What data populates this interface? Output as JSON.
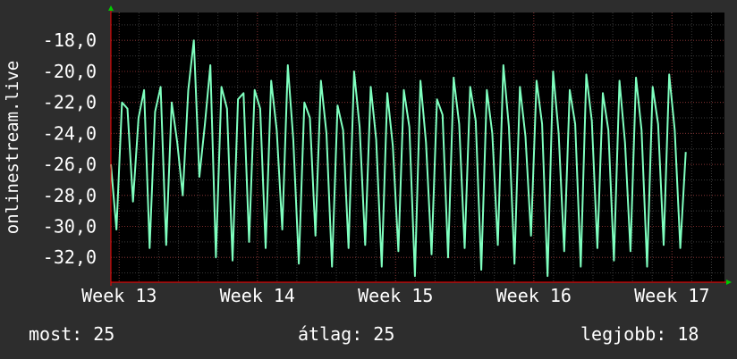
{
  "colors": {
    "background": "#2d2d2d",
    "plot_background": "#000000",
    "line": "#7fffbf",
    "grid_major": "#7a2a2a",
    "grid_minor": "#3a3a3a",
    "axis": "#ff0000",
    "arrow": "#00cc00",
    "text": "#ffffff"
  },
  "chart_data": {
    "type": "line",
    "title": "",
    "xlabel": "",
    "ylabel": "onlinestream.live",
    "ylim": [
      -33.6,
      -16.2
    ],
    "xlim": [
      12.94,
      17.38
    ],
    "ytick_labels": [
      "-18,0",
      "-20,0",
      "-22,0",
      "-24,0",
      "-26,0",
      "-28,0",
      "-30,0",
      "-32,0"
    ],
    "ytick_values": [
      -18,
      -20,
      -22,
      -24,
      -26,
      -28,
      -30,
      -32
    ],
    "xtick_labels": [
      "Week 13",
      "Week 14",
      "Week 15",
      "Week 16",
      "Week 17"
    ],
    "xtick_values": [
      13,
      14,
      15,
      16,
      17
    ],
    "grid": true,
    "series": [
      {
        "name": "",
        "x": [
          12.94,
          12.98,
          13.02,
          13.06,
          13.1,
          13.14,
          13.18,
          13.22,
          13.26,
          13.3,
          13.34,
          13.38,
          13.42,
          13.46,
          13.5,
          13.54,
          13.58,
          13.62,
          13.66,
          13.7,
          13.74,
          13.78,
          13.82,
          13.86,
          13.9,
          13.94,
          13.98,
          14.02,
          14.06,
          14.1,
          14.14,
          14.18,
          14.22,
          14.26,
          14.3,
          14.34,
          14.38,
          14.42,
          14.46,
          14.5,
          14.54,
          14.58,
          14.62,
          14.66,
          14.7,
          14.74,
          14.78,
          14.82,
          14.86,
          14.9,
          14.94,
          14.98,
          15.02,
          15.06,
          15.1,
          15.14,
          15.18,
          15.22,
          15.26,
          15.3,
          15.34,
          15.38,
          15.42,
          15.46,
          15.5,
          15.54,
          15.58,
          15.62,
          15.66,
          15.7,
          15.74,
          15.78,
          15.82,
          15.86,
          15.9,
          15.94,
          15.98,
          16.02,
          16.06,
          16.1,
          16.14,
          16.18,
          16.22,
          16.26,
          16.3,
          16.34,
          16.38,
          16.42,
          16.46,
          16.5,
          16.54,
          16.58,
          16.62,
          16.66,
          16.7,
          16.74,
          16.78,
          16.82,
          16.86,
          16.9,
          16.94,
          16.98,
          17.02,
          17.06,
          17.1
        ],
        "y": [
          -26.0,
          -30.2,
          -22.0,
          -22.4,
          -28.4,
          -23.0,
          -21.2,
          -31.4,
          -22.6,
          -21.0,
          -31.2,
          -22.0,
          -24.6,
          -28.0,
          -21.2,
          -18.0,
          -26.8,
          -23.4,
          -19.6,
          -32.0,
          -21.0,
          -22.4,
          -32.2,
          -21.8,
          -21.4,
          -31.0,
          -21.2,
          -22.4,
          -31.4,
          -20.6,
          -23.8,
          -30.2,
          -19.6,
          -24.4,
          -32.4,
          -22.0,
          -23.0,
          -30.6,
          -20.6,
          -24.0,
          -32.6,
          -22.2,
          -23.8,
          -31.4,
          -20.0,
          -23.6,
          -31.2,
          -21.0,
          -24.4,
          -32.6,
          -21.4,
          -24.8,
          -31.6,
          -21.2,
          -23.6,
          -33.2,
          -20.6,
          -24.6,
          -31.8,
          -21.8,
          -22.8,
          -32.0,
          -20.4,
          -23.4,
          -31.4,
          -21.0,
          -23.2,
          -32.8,
          -21.2,
          -24.0,
          -31.2,
          -19.6,
          -23.6,
          -32.4,
          -21.0,
          -24.2,
          -30.6,
          -20.6,
          -23.4,
          -33.2,
          -20.0,
          -24.0,
          -31.6,
          -21.2,
          -23.4,
          -32.6,
          -20.2,
          -23.2,
          -31.4,
          -21.4,
          -23.8,
          -32.2,
          -20.6,
          -24.6,
          -31.6,
          -20.4,
          -23.8,
          -32.6,
          -21.0,
          -23.4,
          -31.2,
          -20.2,
          -23.8,
          -31.4,
          -25.2
        ]
      }
    ]
  },
  "stats": {
    "current": "most: 25",
    "average": "átlag: 25",
    "maximum": "legjobb: 18"
  }
}
